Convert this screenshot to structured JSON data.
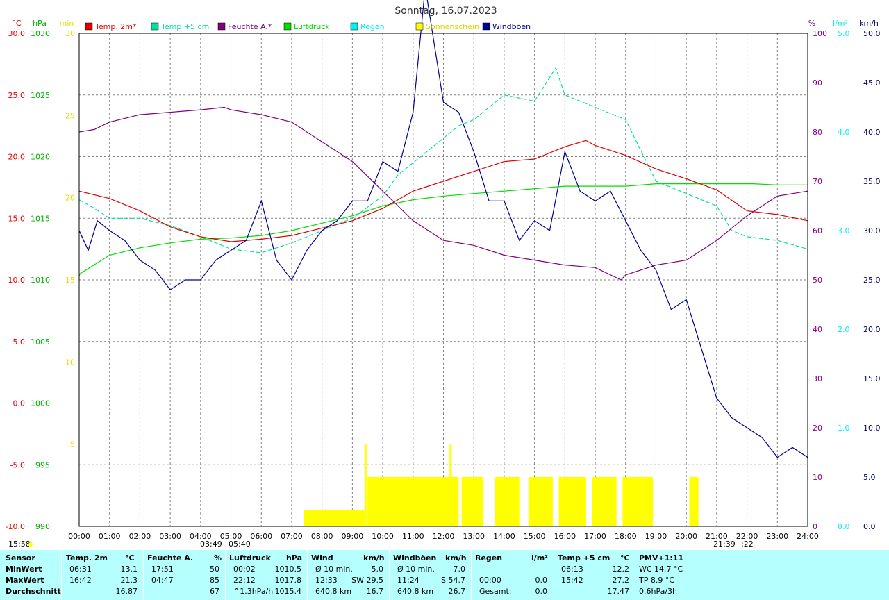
{
  "title": "Sonntag, 16.07.2023",
  "colors": {
    "temp2m": "#e00000",
    "temp5cm": "#00e0a0",
    "humidity": "#800080",
    "pressure": "#00dd00",
    "rain": "#00f0f0",
    "sunshine": "#ffff00",
    "gust": "#000090",
    "grid": "#808080",
    "statsbg": "#b5ffff"
  },
  "chart_data": {
    "type": "line",
    "x_range_hours": [
      0,
      24
    ],
    "x_ticks": [
      "00:00",
      "01:00",
      "02:00",
      "03:00",
      "04:00",
      "05:00",
      "06:00",
      "07:00",
      "08:00",
      "09:00",
      "10:00",
      "11:00",
      "12:00",
      "13:00",
      "14:00",
      "15:00",
      "16:00",
      "17:00",
      "18:00",
      "19:00",
      "20:00",
      "21:00",
      "22:00",
      "23:00",
      "24:00"
    ],
    "axes": {
      "celsius": {
        "unit": "°C",
        "range": [
          -10,
          30
        ],
        "ticks": [
          "30.0",
          "25.0",
          "20.0",
          "15.0",
          "10.0",
          "5.0",
          "0.0",
          "-5.0",
          "-10.0"
        ]
      },
      "hpa": {
        "unit": "hPa",
        "range": [
          990,
          1030
        ],
        "ticks": [
          "1030",
          "1025",
          "1020",
          "1015",
          "1010",
          "1005",
          "1000",
          "995",
          "990"
        ]
      },
      "min": {
        "unit": "min",
        "range": [
          0,
          30
        ],
        "ticks": [
          "30",
          "25",
          "20",
          "15",
          "10",
          "5"
        ]
      },
      "percent": {
        "unit": "%",
        "range": [
          0,
          100
        ],
        "ticks": [
          "100",
          "90",
          "80",
          "70",
          "60",
          "50",
          "40",
          "30",
          "20",
          "10",
          "0"
        ]
      },
      "lm2": {
        "unit": "l/m²",
        "range": [
          0,
          5
        ],
        "ticks": [
          "5.0",
          "4.0",
          "3.0",
          "2.0",
          "1.0",
          "0.0"
        ]
      },
      "kmh": {
        "unit": "km/h",
        "range": [
          0,
          50
        ],
        "ticks": [
          "50.0",
          "45.0",
          "40.0",
          "35.0",
          "30.0",
          "25.0",
          "20.0",
          "15.0",
          "10.0",
          "5.0",
          "0.0"
        ]
      }
    },
    "legend": [
      {
        "label": "Temp. 2m*",
        "color": "#e00000"
      },
      {
        "label": "Temp +5 cm",
        "color": "#00e0a0"
      },
      {
        "label": "Feuchte A.*",
        "color": "#800080"
      },
      {
        "label": "Luftdruck",
        "color": "#00dd00"
      },
      {
        "label": "Regen",
        "color": "#00f0f0"
      },
      {
        "label": "Sonnenschein",
        "color": "#ffff00"
      },
      {
        "label": "Windböen",
        "color": "#000090"
      }
    ],
    "series": [
      {
        "name": "Temp. 2m*",
        "axis": "celsius",
        "x": [
          0,
          1,
          2,
          3,
          4,
          5,
          6,
          7,
          8,
          9,
          10,
          11,
          12,
          13,
          14,
          15,
          16,
          16.7,
          17,
          18,
          19,
          20,
          21,
          22,
          23,
          24
        ],
        "y": [
          17.2,
          16.6,
          15.6,
          14.3,
          13.5,
          13.1,
          13.3,
          13.6,
          14.2,
          14.8,
          15.8,
          17.2,
          18.0,
          18.8,
          19.6,
          19.8,
          20.8,
          21.3,
          20.9,
          20.1,
          19.0,
          18.2,
          17.3,
          15.6,
          15.3,
          14.8
        ]
      },
      {
        "name": "Temp +5 cm",
        "axis": "celsius",
        "x": [
          0,
          0.5,
          1,
          2,
          3,
          4,
          5,
          6,
          7,
          8,
          9,
          10,
          10.5,
          11,
          12,
          12.5,
          13,
          14,
          15,
          15.7,
          16,
          17,
          18,
          19,
          19.5,
          20,
          21,
          21.5,
          22,
          23,
          24
        ],
        "y": [
          16.5,
          15.8,
          15.0,
          15.0,
          14.4,
          13.5,
          12.5,
          12.2,
          13.0,
          14.0,
          15.0,
          16.8,
          18.5,
          19.5,
          21.5,
          22.5,
          23.0,
          25.0,
          24.5,
          27.2,
          25.0,
          24.0,
          23.0,
          18.0,
          17.5,
          17.0,
          16.0,
          14.0,
          13.5,
          13.2,
          12.5
        ]
      },
      {
        "name": "Feuchte A.*",
        "axis": "percent",
        "x": [
          0,
          0.5,
          1,
          2,
          3,
          4,
          4.78,
          5,
          6,
          7,
          8,
          9,
          10,
          11,
          12,
          13,
          14,
          15,
          16,
          17,
          17.85,
          18,
          19,
          20,
          21,
          22,
          23,
          24
        ],
        "y": [
          80,
          80.5,
          82,
          83.5,
          84,
          84.5,
          85,
          84.5,
          83.5,
          82,
          78,
          74,
          68,
          62,
          58,
          57,
          55,
          54,
          53,
          52.5,
          50,
          51,
          53,
          54,
          58,
          63,
          67,
          68
        ]
      },
      {
        "name": "Luftdruck",
        "axis": "hpa",
        "x": [
          0,
          0.03,
          1,
          2,
          3,
          4,
          5,
          6,
          7,
          8,
          9,
          10,
          11,
          12,
          13,
          14,
          15,
          16,
          17,
          18,
          19,
          20,
          21,
          22,
          22.2,
          23,
          24
        ],
        "y": [
          1010.3,
          1010.5,
          1012.0,
          1012.6,
          1013.0,
          1013.3,
          1013.4,
          1013.6,
          1014.0,
          1014.6,
          1015.2,
          1016.0,
          1016.5,
          1016.8,
          1017.0,
          1017.2,
          1017.4,
          1017.6,
          1017.6,
          1017.6,
          1017.8,
          1017.8,
          1017.8,
          1017.8,
          1017.8,
          1017.7,
          1017.7
        ]
      },
      {
        "name": "Windböen",
        "axis": "kmh",
        "x": [
          0,
          0.3,
          0.6,
          1,
          1.5,
          2,
          2.5,
          3,
          3.5,
          4,
          4.5,
          5,
          5.5,
          6,
          6.5,
          7,
          7.5,
          8,
          8.5,
          9,
          9.5,
          10,
          10.5,
          11,
          11.4,
          12,
          12.5,
          13,
          13.5,
          14,
          14.5,
          15,
          15.5,
          16,
          16.5,
          17,
          17.5,
          18,
          18.5,
          19,
          19.5,
          20,
          20.5,
          21,
          21.5,
          22,
          22.5,
          23,
          23.5,
          24
        ],
        "y": [
          30,
          28,
          31,
          30,
          29,
          27,
          26,
          24,
          25,
          25,
          27,
          28,
          29,
          33,
          27,
          25,
          28,
          30,
          31,
          33,
          33,
          37,
          36,
          42,
          54.7,
          43,
          42,
          38,
          33,
          33,
          29,
          31,
          30,
          38,
          34,
          33,
          34,
          31,
          28,
          26,
          22,
          23,
          18,
          13,
          11,
          10,
          9,
          7,
          8,
          7
        ]
      }
    ],
    "sunshine_bars": [
      {
        "start": 7.4,
        "end": 9.4,
        "value": 1.0
      },
      {
        "start": 9.5,
        "end": 11.0,
        "value": 3.0
      },
      {
        "start": 11.0,
        "end": 12.5,
        "value": 3.0
      },
      {
        "start": 12.6,
        "end": 13.3,
        "value": 3.0
      },
      {
        "start": 13.7,
        "end": 14.5,
        "value": 3.0
      },
      {
        "start": 14.8,
        "end": 15.6,
        "value": 3.0
      },
      {
        "start": 15.8,
        "end": 16.7,
        "value": 3.0
      },
      {
        "start": 16.9,
        "end": 17.7,
        "value": 3.0
      },
      {
        "start": 17.9,
        "end": 18.9,
        "value": 3.0
      },
      {
        "start": 20.1,
        "end": 20.4,
        "value": 3.0
      }
    ],
    "sunshine_peaks": [
      {
        "x": 9.4,
        "value": 5.0
      },
      {
        "x": 12.2,
        "value": 5.0
      }
    ],
    "below_axis_labels": {
      "sunrise": "15:58",
      "t1": "03:49",
      "t2": "05:40",
      "t3": "21:39",
      "t4": ":22"
    }
  },
  "stats": {
    "headers": {
      "sensor": "Sensor",
      "temp2m": "Temp. 2m",
      "temp2m_unit": "°C",
      "hum": "Feuchte A.",
      "hum_unit": "%",
      "press": "Luftdruck",
      "press_unit": "hPa",
      "wind": "Wind",
      "wind_unit": "km/h",
      "gust": "Windböen",
      "gust_unit": "km/h",
      "rain": "Regen",
      "rain_unit": "l/m²",
      "t5": "Temp +5 cm",
      "t5_unit": "°C",
      "pmv": "PMV+1:11"
    },
    "rows": [
      {
        "label": "MinWert",
        "temp2m_t": "06:31",
        "temp2m_v": "13.1",
        "hum_t": "17:51",
        "hum_v": "50",
        "press_t": "00:02",
        "press_v": "1010.5",
        "wind_t": "Ø 10 min.",
        "wind_v": "5.0",
        "gust_t": "Ø 10 min.",
        "gust_v": "7.0",
        "rain_t": "",
        "rain_v": "",
        "t5_t": "06:13",
        "t5_v": "12.2",
        "pmv": "WC 14.7 °C"
      },
      {
        "label": "MaxWert",
        "temp2m_t": "16:42",
        "temp2m_v": "21.3",
        "hum_t": "04:47",
        "hum_v": "85",
        "press_t": "22:12",
        "press_v": "1017.8",
        "wind_t": "12:33",
        "wind_dir": "SW 29.5",
        "wind_v": "",
        "gust_t": "11:24",
        "gust_v": "S 54.7",
        "rain_t": "00:00",
        "rain_v": "0.0",
        "t5_t": "15:42",
        "t5_v": "27.2",
        "pmv": "TP 8.9 °C"
      },
      {
        "label": "Durchschnitt",
        "temp2m_t": "",
        "temp2m_v": "16.87",
        "hum_t": "",
        "hum_v": "67",
        "press_t": "^1.3hPa/h",
        "press_v": "1015.4",
        "wind_t": "640.8 km",
        "wind_v": "16.7",
        "gust_t": "640.8 km",
        "gust_v": "26.7",
        "rain_t": "Gesamt:",
        "rain_v": "0.0",
        "t5_t": "",
        "t5_v": "17.47",
        "pmv": "0.6hPa/3h"
      }
    ]
  }
}
